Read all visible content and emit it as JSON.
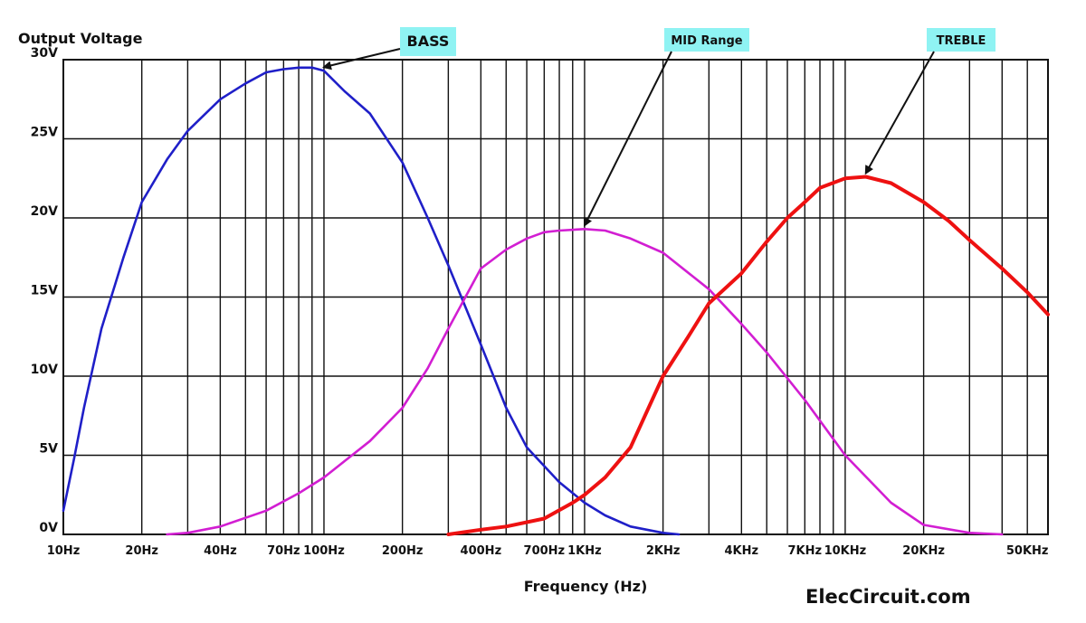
{
  "chart_data": {
    "type": "line",
    "ylabel": "Output Voltage",
    "xlabel": "Frequency (Hz)",
    "xscale": "log",
    "xlim": [
      10,
      60000
    ],
    "ylim": [
      0,
      30
    ],
    "grid": true,
    "y_ticks": [
      {
        "value": 0,
        "label": "0V"
      },
      {
        "value": 5,
        "label": "5V"
      },
      {
        "value": 10,
        "label": "10V"
      },
      {
        "value": 15,
        "label": "15V"
      },
      {
        "value": 20,
        "label": "20V"
      },
      {
        "value": 25,
        "label": "25V"
      },
      {
        "value": 30,
        "label": "30V"
      }
    ],
    "x_ticks": [
      {
        "value": 10,
        "label": "10Hz"
      },
      {
        "value": 20,
        "label": "20Hz"
      },
      {
        "value": 40,
        "label": "40Hz"
      },
      {
        "value": 70,
        "label": "70Hz"
      },
      {
        "value": 100,
        "label": "100Hz"
      },
      {
        "value": 200,
        "label": "200Hz"
      },
      {
        "value": 400,
        "label": "400Hz"
      },
      {
        "value": 700,
        "label": "700Hz"
      },
      {
        "value": 1000,
        "label": "1KHz"
      },
      {
        "value": 2000,
        "label": "2KHz"
      },
      {
        "value": 4000,
        "label": "4KHz"
      },
      {
        "value": 7000,
        "label": "7KHz"
      },
      {
        "value": 10000,
        "label": "10KHz"
      },
      {
        "value": 20000,
        "label": "20KHz"
      },
      {
        "value": 50000,
        "label": "50KHz"
      }
    ],
    "gridlines_x": [
      10,
      20,
      30,
      40,
      50,
      60,
      70,
      80,
      90,
      100,
      200,
      300,
      400,
      500,
      600,
      700,
      800,
      900,
      1000,
      2000,
      3000,
      4000,
      5000,
      6000,
      7000,
      8000,
      9000,
      10000,
      20000,
      30000,
      40000,
      50000,
      60000
    ],
    "series": [
      {
        "name": "BASS",
        "color": "#1f1fc8",
        "points": [
          [
            10,
            1.5
          ],
          [
            11,
            4.8
          ],
          [
            12,
            8
          ],
          [
            14,
            13
          ],
          [
            17,
            17.5
          ],
          [
            20,
            21
          ],
          [
            25,
            23.7
          ],
          [
            30,
            25.5
          ],
          [
            40,
            27.5
          ],
          [
            50,
            28.5
          ],
          [
            60,
            29.2
          ],
          [
            70,
            29.4
          ],
          [
            80,
            29.5
          ],
          [
            90,
            29.5
          ],
          [
            100,
            29.3
          ],
          [
            120,
            28
          ],
          [
            150,
            26.6
          ],
          [
            200,
            23.5
          ],
          [
            250,
            20
          ],
          [
            300,
            17
          ],
          [
            400,
            12
          ],
          [
            500,
            8
          ],
          [
            600,
            5.5
          ],
          [
            800,
            3.3
          ],
          [
            1000,
            2
          ],
          [
            1200,
            1.2
          ],
          [
            1500,
            0.5
          ],
          [
            2000,
            0.1
          ],
          [
            2300,
            0
          ]
        ]
      },
      {
        "name": "MID Range",
        "color": "#d21ed2",
        "points": [
          [
            25,
            0
          ],
          [
            30,
            0.1
          ],
          [
            40,
            0.5
          ],
          [
            60,
            1.5
          ],
          [
            80,
            2.6
          ],
          [
            100,
            3.6
          ],
          [
            150,
            5.9
          ],
          [
            200,
            8
          ],
          [
            250,
            10.5
          ],
          [
            300,
            13
          ],
          [
            400,
            16.8
          ],
          [
            500,
            18
          ],
          [
            600,
            18.7
          ],
          [
            700,
            19.1
          ],
          [
            800,
            19.2
          ],
          [
            1000,
            19.3
          ],
          [
            1200,
            19.2
          ],
          [
            1500,
            18.7
          ],
          [
            2000,
            17.8
          ],
          [
            3000,
            15.5
          ],
          [
            4000,
            13.3
          ],
          [
            5000,
            11.5
          ],
          [
            7000,
            8.5
          ],
          [
            10000,
            5
          ],
          [
            15000,
            2
          ],
          [
            20000,
            0.6
          ],
          [
            30000,
            0.1
          ],
          [
            40000,
            0
          ]
        ]
      },
      {
        "name": "TREBLE",
        "color": "#ee1111",
        "points": [
          [
            300,
            0
          ],
          [
            400,
            0.3
          ],
          [
            500,
            0.5
          ],
          [
            700,
            1
          ],
          [
            900,
            2
          ],
          [
            1000,
            2.5
          ],
          [
            1200,
            3.6
          ],
          [
            1500,
            5.5
          ],
          [
            2000,
            10
          ],
          [
            2500,
            12.5
          ],
          [
            3000,
            14.6
          ],
          [
            4000,
            16.5
          ],
          [
            5000,
            18.5
          ],
          [
            6000,
            20
          ],
          [
            7000,
            21
          ],
          [
            8000,
            21.9
          ],
          [
            10000,
            22.5
          ],
          [
            12000,
            22.6
          ],
          [
            15000,
            22.2
          ],
          [
            20000,
            21
          ],
          [
            25000,
            19.8
          ],
          [
            30000,
            18.6
          ],
          [
            40000,
            16.8
          ],
          [
            50000,
            15.3
          ],
          [
            60000,
            13.9
          ]
        ]
      }
    ],
    "annotations": [
      {
        "label": "BASS",
        "color": "#8ff3f3",
        "target": [
          100,
          29.3
        ]
      },
      {
        "label": "MID Range",
        "color": "#8ff3f3",
        "target": [
          1000,
          19.3
        ]
      },
      {
        "label": "TREBLE",
        "color": "#8ff3f3",
        "target": [
          12000,
          22.6
        ]
      }
    ]
  },
  "watermark": "ElecCircuit.com"
}
